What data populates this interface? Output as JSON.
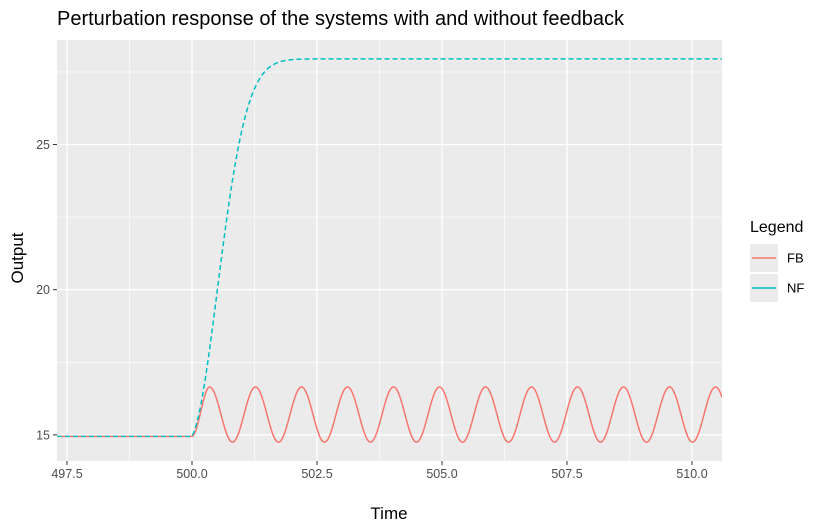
{
  "chart_data": {
    "type": "line",
    "title": "Perturbation response of the systems with and without feedback",
    "xlabel": "Time",
    "ylabel": "Output",
    "xlim": [
      497.3,
      510.6
    ],
    "ylim": [
      14.1,
      28.6
    ],
    "x_ticks": [
      497.5,
      500.0,
      502.5,
      505.0,
      507.5,
      510.0
    ],
    "x_tick_labels": [
      "497.5",
      "500.0",
      "502.5",
      "505.0",
      "507.5",
      "510.0"
    ],
    "y_ticks": [
      15,
      20,
      25
    ],
    "y_tick_labels": [
      "15",
      "20",
      "25"
    ],
    "grid": true,
    "legend": {
      "title": "Legend",
      "position": "right"
    },
    "perturbation_time": 500.0,
    "series": [
      {
        "name": "FB",
        "color": "#F8766D",
        "dash": "solid",
        "baseline": 14.95,
        "oscillation": {
          "min": 14.75,
          "max": 16.65,
          "period": 0.92,
          "first_peak": 500.35
        }
      },
      {
        "name": "NF",
        "color": "#00BFC4",
        "dash": "dashed",
        "baseline": 14.95,
        "final_value": 27.95,
        "rise": {
          "value_at_501": 24.0,
          "value_at_502": 27.1,
          "value_at_503": 27.8
        }
      }
    ]
  }
}
